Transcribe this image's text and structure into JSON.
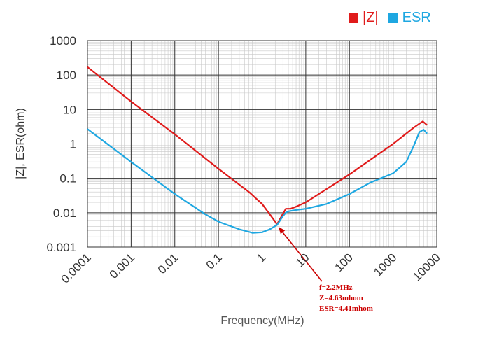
{
  "chart_data": {
    "type": "line",
    "xlabel": "Frequency(MHz)",
    "ylabel": "|Z|, ESR(ohm)",
    "xscale": "log",
    "yscale": "log",
    "xlim": [
      0.0001,
      10000
    ],
    "ylim": [
      0.001,
      1000
    ],
    "grid": true,
    "legend_position": "top-right",
    "x_ticks": [
      "0.0001",
      "0.001",
      "0.01",
      "0.1",
      "1",
      "10",
      "100",
      "1000",
      "10000"
    ],
    "y_ticks": [
      "1000",
      "100",
      "10",
      "1",
      "0.1",
      "0.01",
      "0.001"
    ],
    "series": [
      {
        "name": "|Z|",
        "color": "#e01b1b",
        "x": [
          0.0001,
          0.001,
          0.01,
          0.1,
          0.5,
          1,
          1.5,
          2.2,
          2.8,
          3.5,
          4.5,
          6,
          10,
          100,
          1000,
          3000,
          4800,
          6000
        ],
        "y": [
          170,
          17,
          1.9,
          0.19,
          0.04,
          0.018,
          0.009,
          0.00463,
          0.008,
          0.013,
          0.013,
          0.015,
          0.02,
          0.13,
          1.0,
          3.0,
          4.5,
          3.5
        ]
      },
      {
        "name": "ESR",
        "color": "#1ea7e1",
        "x": [
          0.0001,
          0.001,
          0.01,
          0.05,
          0.1,
          0.3,
          0.6,
          1,
          1.5,
          2.2,
          3,
          3.5,
          4,
          6,
          10,
          30,
          100,
          300,
          1000,
          2000,
          3000,
          4000,
          5000,
          6000
        ],
        "y": [
          2.7,
          0.3,
          0.035,
          0.009,
          0.0055,
          0.0033,
          0.0026,
          0.0027,
          0.0033,
          0.00441,
          0.008,
          0.01,
          0.011,
          0.012,
          0.013,
          0.018,
          0.035,
          0.075,
          0.14,
          0.3,
          0.9,
          2.2,
          2.6,
          2.0
        ]
      }
    ],
    "annotation": {
      "lines": [
        "f=2.2MHz",
        "Z=4.63mhom",
        "ESR=4.41mhom"
      ],
      "point": {
        "x": 2.2,
        "y": 0.0045
      },
      "color": "#cc0000"
    }
  }
}
